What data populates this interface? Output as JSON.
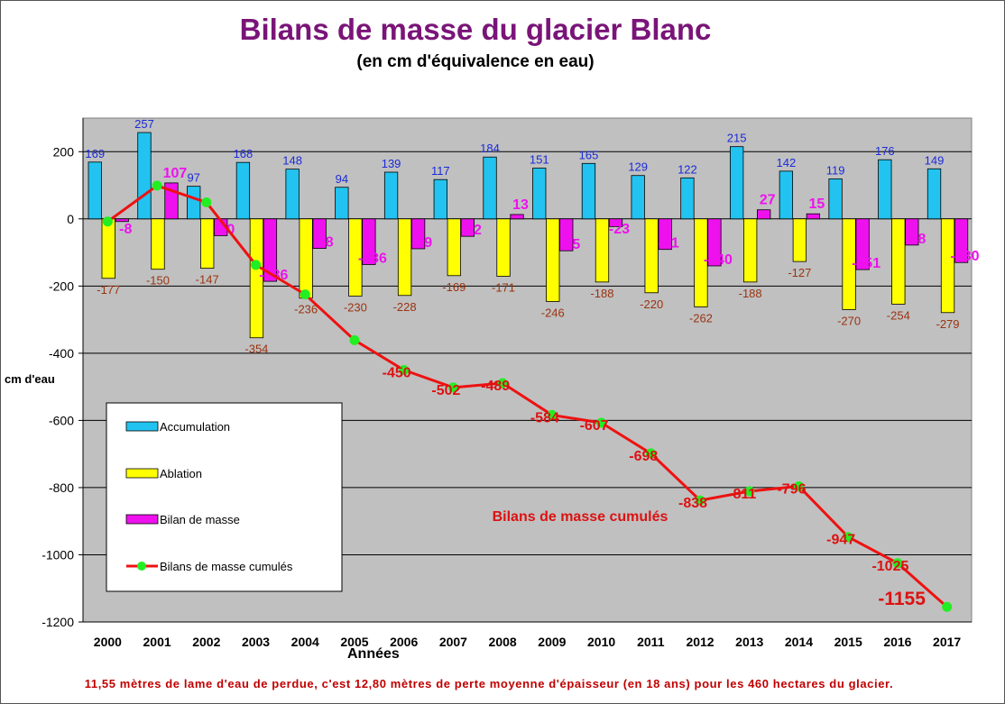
{
  "title": "Bilans de masse du glacier Blanc",
  "subtitle": "(en cm d'équivalence en eau)",
  "footnote": "11,55 mètres de lame d'eau de perdue, c'est 12,80 mètres de perte moyenne d'épaisseur (en 18 ans) pour les 460 hectares du glacier.",
  "colors": {
    "accumulation": "#22c3f0",
    "ablation": "#ffff00",
    "bilan": "#ee11ee",
    "cumul_line": "#ee1111",
    "cumul_marker": "#22ee22",
    "plot_bg": "#c0c0c0",
    "accum_label": "#1a2bd8",
    "ablation_label": "#993311",
    "bilan_label": "#ee11ee",
    "cumul_label": "#dd1111"
  },
  "chart_data": {
    "type": "bar",
    "xlabel": "Années",
    "ylabel": "cm d'eau",
    "ylim": [
      -1200,
      300
    ],
    "yticks": [
      200,
      0,
      -200,
      -400,
      -600,
      -800,
      -1000,
      -1200
    ],
    "grid": true,
    "legend_position": "left-bottom",
    "categories": [
      "2000",
      "2001",
      "2002",
      "2003",
      "2004",
      "2005",
      "2006",
      "2007",
      "2008",
      "2009",
      "2010",
      "2011",
      "2012",
      "2013",
      "2014",
      "2015",
      "2016",
      "2017"
    ],
    "series": [
      {
        "name": "Accumulation",
        "kind": "bar",
        "values": [
          169,
          257,
          97,
          168,
          148,
          94,
          139,
          117,
          184,
          151,
          165,
          129,
          122,
          215,
          142,
          119,
          176,
          149
        ]
      },
      {
        "name": "Ablation",
        "kind": "bar",
        "values": [
          -177,
          -150,
          -147,
          -354,
          -236,
          -230,
          -228,
          -169,
          -171,
          -246,
          -188,
          -220,
          -262,
          -188,
          -127,
          -270,
          -254,
          -279
        ]
      },
      {
        "name": "Bilan de masse",
        "kind": "bar",
        "values": [
          -8,
          107,
          -50,
          -186,
          -88,
          -136,
          -89,
          -52,
          13,
          -95,
          -23,
          -91,
          -140,
          27,
          15,
          -151,
          -78,
          -130
        ]
      },
      {
        "name": "Bilans de masse cumulés",
        "kind": "line",
        "values": [
          -8,
          99,
          49,
          -137,
          -225,
          -361,
          -450,
          -502,
          -489,
          -584,
          -607,
          -698,
          -838,
          -811,
          -796,
          -947,
          -1025,
          -1155
        ]
      }
    ],
    "cumul_labels": [
      "-450",
      "-502",
      "-489",
      "-584",
      "-607",
      "-698",
      "-838",
      "-811",
      "-796",
      "-947",
      "-1025",
      "-1155"
    ],
    "annotation": "Bilans de masse cumulés"
  }
}
